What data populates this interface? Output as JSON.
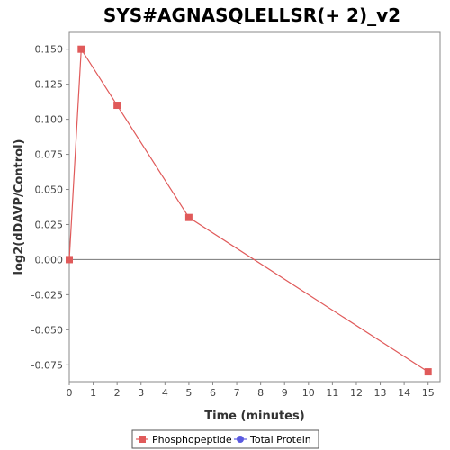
{
  "chart_data": {
    "type": "line",
    "title": "SYS#AGNASQLELLSR(+ 2)_v2",
    "xlabel": "Time (minutes)",
    "ylabel": "log2(dDAVP/Control)",
    "xlim": [
      0,
      15.5
    ],
    "ylim": [
      -0.087,
      0.162
    ],
    "xticks": [
      0,
      1,
      2,
      3,
      4,
      5,
      6,
      7,
      8,
      9,
      10,
      11,
      12,
      13,
      14,
      15
    ],
    "yticks": [
      0.15,
      0.125,
      0.1,
      0.075,
      0.05,
      0.025,
      0.0,
      -0.025,
      -0.05,
      -0.075
    ],
    "ytick_labels": [
      "0.150",
      "0.125",
      "0.100",
      "0.075",
      "0.050",
      "0.025",
      "0.000",
      "-0.025",
      "-0.050",
      "-0.075"
    ],
    "grid": false,
    "zero_line": true,
    "legend_position": "bottom",
    "series": [
      {
        "name": "Phosphopeptide",
        "color": "#e05a5a",
        "marker": "square",
        "x": [
          0,
          0.5,
          2,
          5,
          15
        ],
        "y": [
          0.0,
          0.15,
          0.11,
          0.03,
          -0.08
        ]
      },
      {
        "name": "Total Protein",
        "color": "#5a5ae0",
        "marker": "circle",
        "x": [],
        "y": []
      }
    ]
  }
}
